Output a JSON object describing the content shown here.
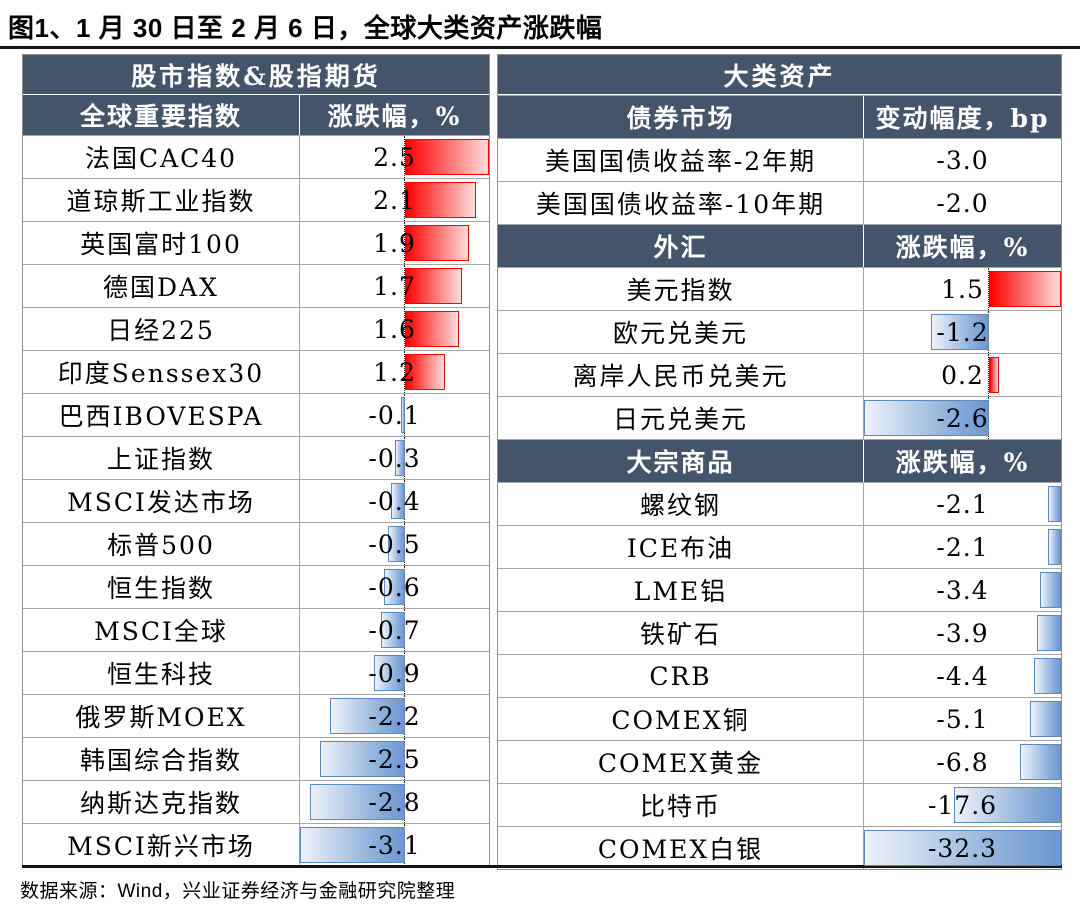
{
  "title": "图1、1 月 30 日至 2 月 6 日，全球大类资产涨跌幅",
  "footer": "数据来源：Wind，兴业证券经济与金融研究院整理",
  "colors": {
    "header_bg": "#44546A",
    "header_text": "#FFFFFF",
    "positive_bar": "#FF0000",
    "negative_bar": "#638EC6",
    "gridline": "#A6A6A6"
  },
  "left_table": {
    "group_header": "股市指数&股指期货",
    "columns": [
      "全球重要指数",
      "涨跌幅，%"
    ],
    "bar_scale": {
      "min": -3.1,
      "max": 2.5,
      "show_axis": true
    },
    "rows": [
      {
        "name": "法国CAC40",
        "value": "2.5",
        "num": 2.5
      },
      {
        "name": "道琼斯工业指数",
        "value": "2.1",
        "num": 2.1
      },
      {
        "name": "英国富时100",
        "value": "1.9",
        "num": 1.9
      },
      {
        "name": "德国DAX",
        "value": "1.7",
        "num": 1.7
      },
      {
        "name": "日经225",
        "value": "1.6",
        "num": 1.6
      },
      {
        "name": "印度Senssex30",
        "value": "1.2",
        "num": 1.2
      },
      {
        "name": "巴西IBOVESPA",
        "value": "-0.1",
        "num": -0.1
      },
      {
        "name": "上证指数",
        "value": "-0.3",
        "num": -0.3
      },
      {
        "name": "MSCI发达市场",
        "value": "-0.4",
        "num": -0.4
      },
      {
        "name": "标普500",
        "value": "-0.5",
        "num": -0.5
      },
      {
        "name": "恒生指数",
        "value": "-0.6",
        "num": -0.6
      },
      {
        "name": "MSCI全球",
        "value": "-0.7",
        "num": -0.7
      },
      {
        "name": "恒生科技",
        "value": "-0.9",
        "num": -0.9
      },
      {
        "name": "俄罗斯MOEX",
        "value": "-2.2",
        "num": -2.2
      },
      {
        "name": "韩国综合指数",
        "value": "-2.5",
        "num": -2.5
      },
      {
        "name": "纳斯达克指数",
        "value": "-2.8",
        "num": -2.8
      },
      {
        "name": "MSCI新兴市场",
        "value": "-3.1",
        "num": -3.1
      }
    ]
  },
  "right_table": {
    "group_header": "大类资产",
    "bar_scales": {
      "fx": {
        "min": -2.6,
        "max": 1.5,
        "show_axis": true
      },
      "cmd": {
        "min": -32.3,
        "max": 0,
        "show_axis": false
      }
    },
    "items": [
      {
        "kind": "header",
        "c1": "债券市场",
        "c2": "变动幅度，bp"
      },
      {
        "kind": "row",
        "name": "美国国债收益率-2年期",
        "value": "-3.0",
        "num": -3.0,
        "bar": "none"
      },
      {
        "kind": "row",
        "name": "美国国债收益率-10年期",
        "value": "-2.0",
        "num": -2.0,
        "bar": "none"
      },
      {
        "kind": "header",
        "c1": "外汇",
        "c2": "涨跌幅，%"
      },
      {
        "kind": "row",
        "name": "美元指数",
        "value": "1.5",
        "num": 1.5,
        "bar": "fx"
      },
      {
        "kind": "row",
        "name": "欧元兑美元",
        "value": "-1.2",
        "num": -1.2,
        "bar": "fx"
      },
      {
        "kind": "row",
        "name": "离岸人民币兑美元",
        "value": "0.2",
        "num": 0.2,
        "bar": "fx"
      },
      {
        "kind": "row",
        "name": "日元兑美元",
        "value": "-2.6",
        "num": -2.6,
        "bar": "fx"
      },
      {
        "kind": "header",
        "c1": "大宗商品",
        "c2": "涨跌幅，%"
      },
      {
        "kind": "row",
        "name": "螺纹钢",
        "value": "-2.1",
        "num": -2.1,
        "bar": "cmd"
      },
      {
        "kind": "row",
        "name": "ICE布油",
        "value": "-2.1",
        "num": -2.1,
        "bar": "cmd"
      },
      {
        "kind": "row",
        "name": "LME铝",
        "value": "-3.4",
        "num": -3.4,
        "bar": "cmd"
      },
      {
        "kind": "row",
        "name": "铁矿石",
        "value": "-3.9",
        "num": -3.9,
        "bar": "cmd"
      },
      {
        "kind": "row",
        "name": "CRB",
        "value": "-4.4",
        "num": -4.4,
        "bar": "cmd"
      },
      {
        "kind": "row",
        "name": "COMEX铜",
        "value": "-5.1",
        "num": -5.1,
        "bar": "cmd"
      },
      {
        "kind": "row",
        "name": "COMEX黄金",
        "value": "-6.8",
        "num": -6.8,
        "bar": "cmd"
      },
      {
        "kind": "row",
        "name": "比特币",
        "value": "-17.6",
        "num": -17.6,
        "bar": "cmd"
      },
      {
        "kind": "row",
        "name": "COMEX白银",
        "value": "-32.3",
        "num": -32.3,
        "bar": "cmd"
      }
    ]
  },
  "chart_data": {
    "type": "table",
    "title": "图1、1 月 30 日至 2 月 6 日，全球大类资产涨跌幅",
    "layout_hint": "two side-by-side tables with in-cell data bars (red = positive, blue = negative)",
    "sections": [
      {
        "group": "股市指数&股指期货",
        "metric": "涨跌幅，%",
        "categories": [
          "法国CAC40",
          "道琼斯工业指数",
          "英国富时100",
          "德国DAX",
          "日经225",
          "印度Senssex30",
          "巴西IBOVESPA",
          "上证指数",
          "MSCI发达市场",
          "标普500",
          "恒生指数",
          "MSCI全球",
          "恒生科技",
          "俄罗斯MOEX",
          "韩国综合指数",
          "纳斯达克指数",
          "MSCI新兴市场"
        ],
        "values": [
          2.5,
          2.1,
          1.9,
          1.7,
          1.6,
          1.2,
          -0.1,
          -0.3,
          -0.4,
          -0.5,
          -0.6,
          -0.7,
          -0.9,
          -2.2,
          -2.5,
          -2.8,
          -3.1
        ],
        "bar_axis_range": [
          -3.1,
          2.5
        ]
      },
      {
        "group": "大类资产 / 债券市场",
        "metric": "变动幅度，bp",
        "categories": [
          "美国国债收益率-2年期",
          "美国国债收益率-10年期"
        ],
        "values": [
          -3.0,
          -2.0
        ]
      },
      {
        "group": "大类资产 / 外汇",
        "metric": "涨跌幅，%",
        "categories": [
          "美元指数",
          "欧元兑美元",
          "离岸人民币兑美元",
          "日元兑美元"
        ],
        "values": [
          1.5,
          -1.2,
          0.2,
          -2.6
        ],
        "bar_axis_range": [
          -2.6,
          1.5
        ]
      },
      {
        "group": "大类资产 / 大宗商品",
        "metric": "涨跌幅，%",
        "categories": [
          "螺纹钢",
          "ICE布油",
          "LME铝",
          "铁矿石",
          "CRB",
          "COMEX铜",
          "COMEX黄金",
          "比特币",
          "COMEX白银"
        ],
        "values": [
          -2.1,
          -2.1,
          -3.4,
          -3.9,
          -4.4,
          -5.1,
          -6.8,
          -17.6,
          -32.3
        ],
        "bar_axis_range": [
          -32.3,
          0
        ]
      }
    ]
  }
}
